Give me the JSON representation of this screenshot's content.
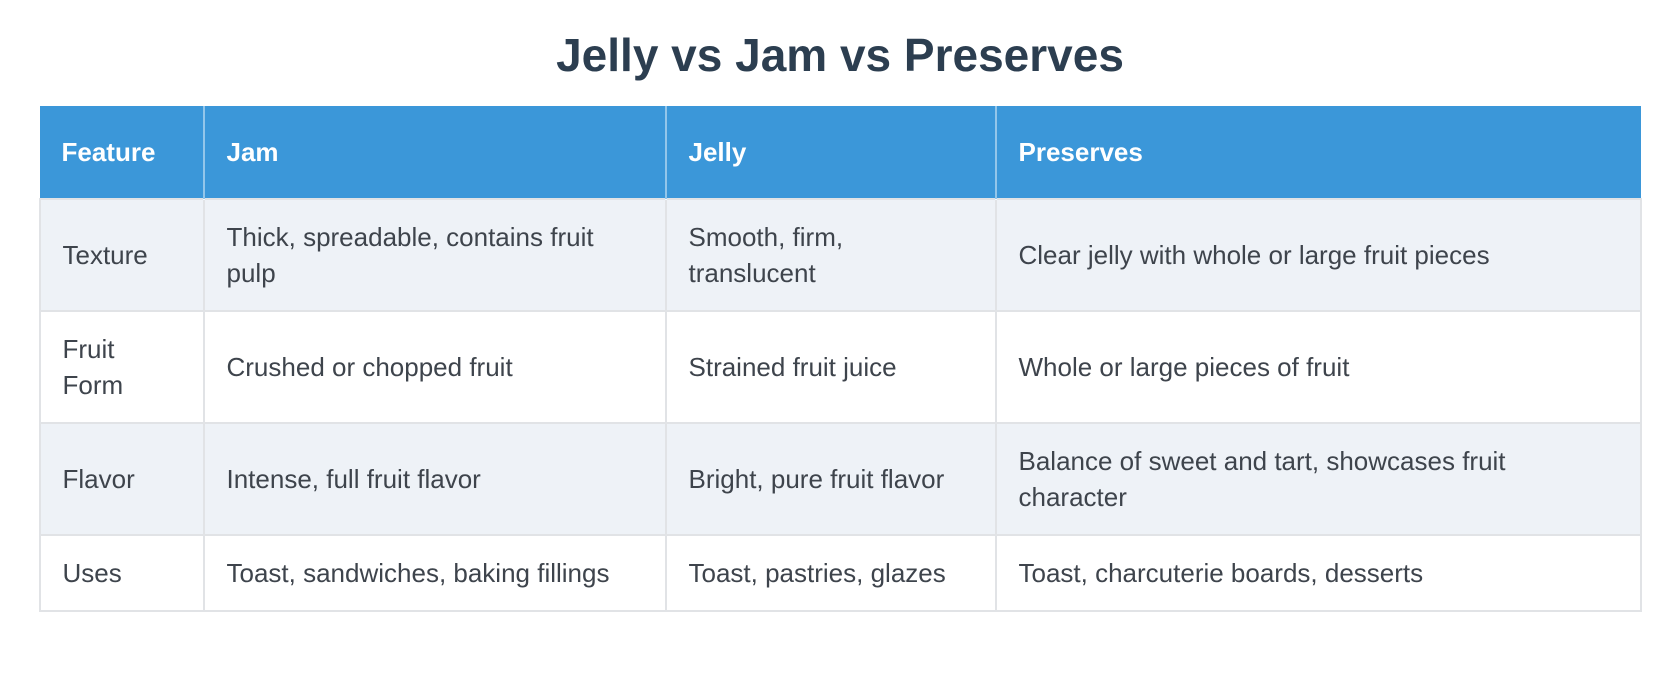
{
  "title": "Jelly vs Jam vs Preserves",
  "chart_data": {
    "type": "table",
    "title": "Jelly vs Jam vs Preserves",
    "columns": [
      "Feature",
      "Jam",
      "Jelly",
      "Preserves"
    ],
    "rows": [
      [
        "Texture",
        "Thick, spreadable, contains fruit pulp",
        "Smooth, firm, translucent",
        "Clear jelly with whole or large fruit pieces"
      ],
      [
        "Fruit Form",
        "Crushed or chopped fruit",
        "Strained fruit juice",
        "Whole or large pieces of fruit"
      ],
      [
        "Flavor",
        "Intense, full fruit flavor",
        "Bright, pure fruit flavor",
        "Balance of sweet and tart, showcases fruit character"
      ],
      [
        "Uses",
        "Toast, sandwiches, baking fillings",
        "Toast, pastries, glazes",
        "Toast, charcuterie boards, desserts"
      ]
    ],
    "layout": {
      "header_position": "top",
      "zebra_striping": true,
      "first_row_style": "striped"
    }
  },
  "colors": {
    "header_bg": "#3b97d9",
    "header_text": "#ffffff",
    "header_divider": "rgba(255,255,255,0.45)",
    "row_striped_bg": "#eef2f7",
    "row_plain_bg": "#ffffff",
    "cell_border": "#e1e3e6",
    "title_text": "#2c3e50",
    "body_text": "#3e444c"
  }
}
